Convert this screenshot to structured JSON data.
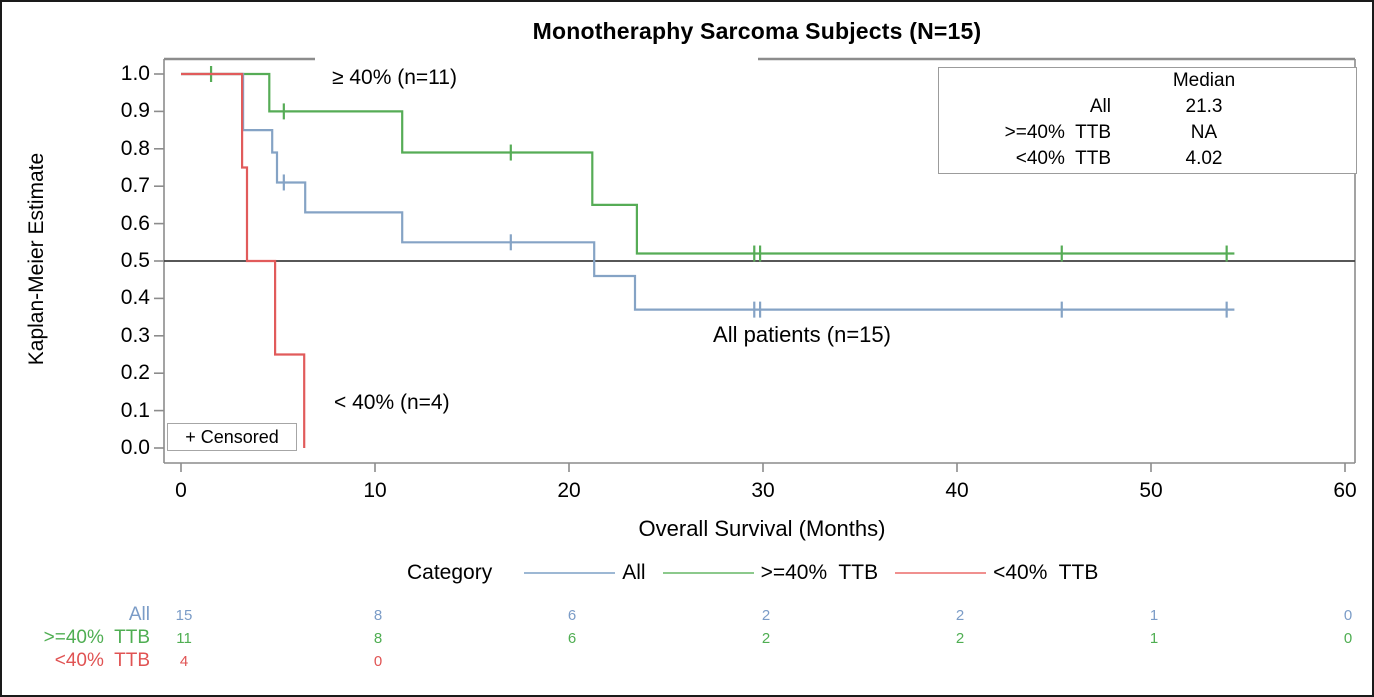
{
  "title": "Monotheraphy Sarcoma Subjects (N=15)",
  "y_axis": {
    "label": "Kaplan-Meier Estimate",
    "ticks": [
      "1.0",
      "0.9",
      "0.8",
      "0.7",
      "0.6",
      "0.5",
      "0.4",
      "0.3",
      "0.2",
      "0.1",
      "0.0"
    ]
  },
  "x_axis": {
    "label": "Overall Survival (Months)",
    "ticks": [
      "0",
      "10",
      "20",
      "30",
      "40",
      "50",
      "60"
    ]
  },
  "annotations": {
    "ge40_label": "≥ 40% (n=11)",
    "all_label": "All patients (n=15)",
    "lt40_label": "< 40% (n=4)",
    "censored_label": "+ Censored"
  },
  "median_table": {
    "value_header": "Median",
    "rows": [
      {
        "label": "All",
        "value": "21.3"
      },
      {
        "label": ">=40%  TTB",
        "value": "NA"
      },
      {
        "label": "<40%  TTB",
        "value": "4.02"
      }
    ]
  },
  "legend": {
    "title": "Category",
    "items": [
      {
        "label": "All",
        "color": "#9db8d4"
      },
      {
        "label": ">=40%  TTB",
        "color": "#8cc98c"
      },
      {
        "label": "<40%  TTB",
        "color": "#f0908f"
      }
    ]
  },
  "risk_table": {
    "rows": [
      {
        "label": "All",
        "color": "#7b9cc7",
        "counts": [
          "15",
          "8",
          "6",
          "2",
          "2",
          "1",
          "0"
        ]
      },
      {
        "label": ">=40%  TTB",
        "color": "#4fae52",
        "counts": [
          "11",
          "8",
          "6",
          "2",
          "2",
          "1",
          "0"
        ]
      },
      {
        "label": "<40%  TTB",
        "color": "#e05353",
        "counts": [
          "4",
          "0"
        ]
      }
    ]
  },
  "chart_data": {
    "type": "line",
    "subtype": "kaplan-meier-step",
    "title": "Monotheraphy Sarcoma Subjects (N=15)",
    "xlabel": "Overall Survival (Months)",
    "ylabel": "Kaplan-Meier Estimate",
    "xlim": [
      0,
      60
    ],
    "ylim": [
      0.0,
      1.0
    ],
    "x_ticks": [
      0,
      10,
      20,
      30,
      40,
      50,
      60
    ],
    "y_ticks": [
      1.0,
      0.9,
      0.8,
      0.7,
      0.6,
      0.5,
      0.4,
      0.3,
      0.2,
      0.1,
      0.0
    ],
    "reference_line_y": 0.5,
    "grid": false,
    "legend_position": "bottom",
    "series": [
      {
        "name": "All",
        "n": 15,
        "median": "21.3",
        "color": "#85a3c5",
        "steps": [
          [
            0,
            1.0
          ],
          [
            3.2,
            1.0
          ],
          [
            3.2,
            0.85
          ],
          [
            4.7,
            0.85
          ],
          [
            4.7,
            0.79
          ],
          [
            4.95,
            0.79
          ],
          [
            4.95,
            0.71
          ],
          [
            6.4,
            0.71
          ],
          [
            6.4,
            0.63
          ],
          [
            11.4,
            0.63
          ],
          [
            11.4,
            0.55
          ],
          [
            21.3,
            0.55
          ],
          [
            21.3,
            0.46
          ],
          [
            23.4,
            0.46
          ],
          [
            23.4,
            0.37
          ],
          [
            54.3,
            0.37
          ]
        ],
        "censor_marks": [
          [
            5.3,
            0.71
          ],
          [
            17.0,
            0.55
          ],
          [
            29.55,
            0.37
          ],
          [
            29.85,
            0.37
          ],
          [
            45.4,
            0.37
          ],
          [
            53.9,
            0.37
          ]
        ]
      },
      {
        "name": ">=40% TTB",
        "n": 11,
        "median": "NA",
        "color": "#56ac56",
        "steps": [
          [
            0,
            1.0
          ],
          [
            4.55,
            1.0
          ],
          [
            4.55,
            0.9
          ],
          [
            11.4,
            0.9
          ],
          [
            11.4,
            0.79
          ],
          [
            21.2,
            0.79
          ],
          [
            21.2,
            0.65
          ],
          [
            23.5,
            0.65
          ],
          [
            23.5,
            0.52
          ],
          [
            54.3,
            0.52
          ]
        ],
        "censor_marks": [
          [
            1.55,
            1.0
          ],
          [
            5.3,
            0.9
          ],
          [
            17.0,
            0.79
          ],
          [
            29.55,
            0.52
          ],
          [
            29.85,
            0.52
          ],
          [
            45.4,
            0.52
          ],
          [
            53.9,
            0.52
          ]
        ]
      },
      {
        "name": "<40% TTB",
        "n": 4,
        "median": "4.02",
        "color": "#e15b5b",
        "steps": [
          [
            0,
            1.0
          ],
          [
            3.15,
            1.0
          ],
          [
            3.15,
            0.75
          ],
          [
            3.4,
            0.75
          ],
          [
            3.4,
            0.5
          ],
          [
            4.85,
            0.5
          ],
          [
            4.85,
            0.25
          ],
          [
            6.35,
            0.25
          ],
          [
            6.35,
            0.0
          ]
        ],
        "censor_marks": []
      }
    ]
  }
}
